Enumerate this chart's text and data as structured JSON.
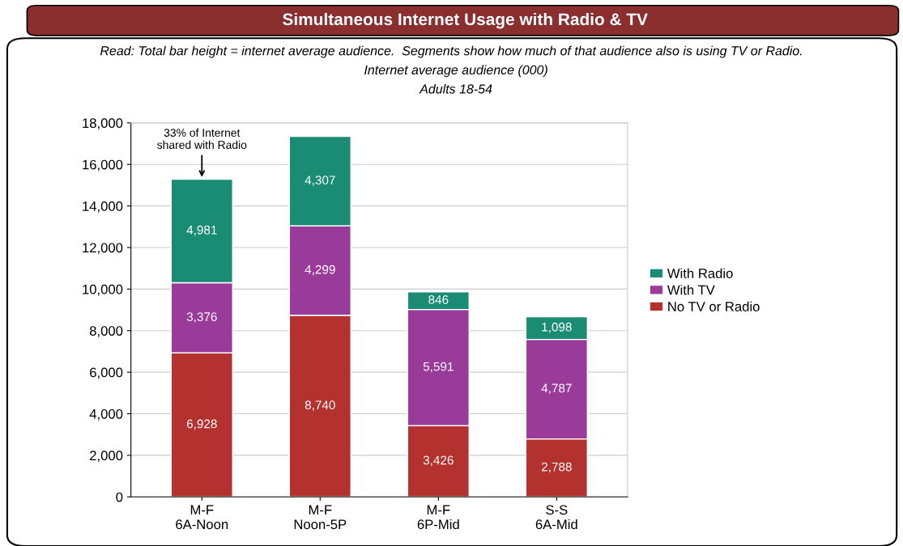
{
  "chart_data": {
    "type": "bar",
    "stacked": true,
    "title": "Simultaneous Internet Usage with Radio & TV",
    "subtitle": "Read: Total bar height = internet average audience.  Segments show how much of that audience also is using TV or Radio.",
    "annotations": [
      "Internet average audience (000)",
      "Adults 18-54",
      {
        "text": "33% of Internet\nshared with Radio",
        "x": "M-F\n6A-Noon",
        "y": 15285
      }
    ],
    "categories": [
      "M-F\n6A-Noon",
      "M-F\nNoon-5P",
      "M-F\n6P-Mid",
      "S-S\n6A-Mid"
    ],
    "series": [
      {
        "name": "No TV or Radio",
        "color": "#b3312f",
        "values": [
          6928,
          8740,
          3426,
          2788
        ],
        "value_labels": [
          "6,928",
          "8,740",
          "3,426",
          "2,788"
        ]
      },
      {
        "name": "With TV",
        "color": "#9a3b9a",
        "values": [
          3376,
          4299,
          5591,
          4787
        ],
        "value_labels": [
          "3,376",
          "4,299",
          "5,591",
          "4,787"
        ]
      },
      {
        "name": "With Radio",
        "color": "#1b8c74",
        "values": [
          4981,
          4307,
          846,
          1098
        ],
        "value_labels": [
          "4,981",
          "4,307",
          "846",
          "1,098"
        ]
      }
    ],
    "ylim": [
      0,
      18000
    ],
    "yticks": [
      0,
      {
        "value": 2000,
        "label": "2,000"
      },
      {
        "value": 4000,
        "label": "4,000"
      },
      {
        "value": 6000,
        "label": "6,000"
      },
      {
        "value": 8000,
        "label": "8,000"
      },
      {
        "value": 10000,
        "label": "10,000"
      },
      {
        "value": 12000,
        "label": "12,000"
      },
      {
        "value": 14000,
        "label": "14,000"
      },
      {
        "value": 16000,
        "label": "16,000"
      },
      {
        "value": 18000,
        "label": "18,000"
      }
    ],
    "grid": "y",
    "legend": "right"
  }
}
